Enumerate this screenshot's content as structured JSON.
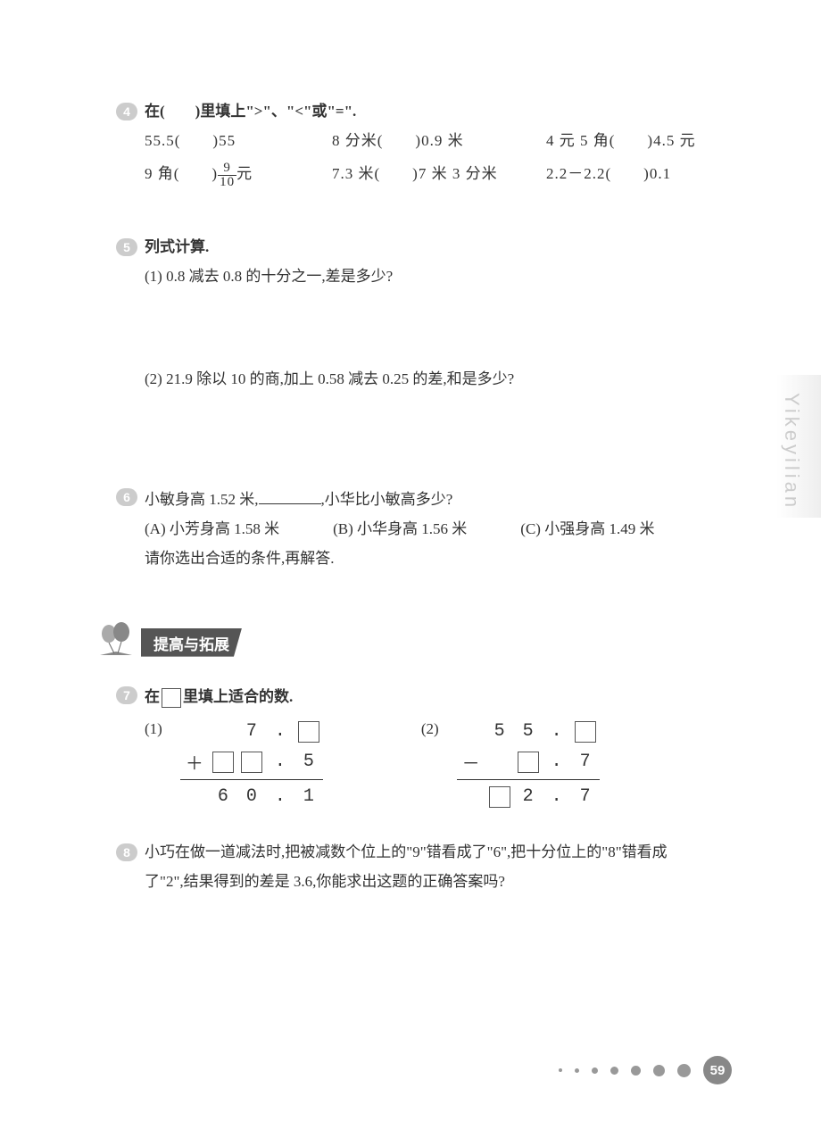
{
  "sideLabel": "Yikeyilian",
  "q4": {
    "title": "在(　　)里填上\">\"、\"<\"或\"=\".",
    "items": [
      "55.5(　　)55",
      "8 分米(　　)0.9 米",
      "4 元 5 角(　　)4.5 元",
      "",
      "7.3 米(　　)7 米 3 分米",
      "2.2－2.2(　　)0.1"
    ],
    "fracItem": {
      "prefix": "9 角(　　)",
      "num": "9",
      "den": "10",
      "suffix": "元"
    }
  },
  "q5": {
    "title": "列式计算.",
    "sub1": "(1) 0.8 减去 0.8 的十分之一,差是多少?",
    "sub2": "(2) 21.9 除以 10 的商,加上 0.58 减去 0.25 的差,和是多少?"
  },
  "q6": {
    "line1a": "小敏身高 1.52 米,",
    "line1b": ",小华比小敏高多少?",
    "optA": "(A) 小芳身高 1.58 米",
    "optB": "(B) 小华身高 1.56 米",
    "optC": "(C) 小强身高 1.49 米",
    "line2": "请你选出合适的条件,再解答."
  },
  "sectionTitle": "提高与拓展",
  "q7": {
    "titlePrefix": "在",
    "titleSuffix": "里填上适合的数.",
    "p1": {
      "label": "(1)",
      "r1": [
        "",
        "",
        "7",
        ".",
        "□"
      ],
      "r2": [
        "＋",
        "□",
        "□",
        ".",
        "5"
      ],
      "r3": [
        "",
        "6",
        "0",
        ".",
        "1"
      ]
    },
    "p2": {
      "label": "(2)",
      "r1": [
        "",
        "5",
        "5",
        ".",
        "□"
      ],
      "r2": [
        "－",
        "",
        "□",
        ".",
        "7"
      ],
      "r3": [
        "",
        "□",
        "2",
        ".",
        "7"
      ]
    }
  },
  "q8": {
    "line1": "小巧在做一道减法时,把被减数个位上的\"9\"错看成了\"6\",把十分位上的\"8\"错看成",
    "line2": "了\"2\",结果得到的差是 3.6,你能求出这题的正确答案吗?"
  },
  "pageNum": "59",
  "dots": [
    4,
    5,
    7,
    9,
    11,
    13,
    15
  ]
}
